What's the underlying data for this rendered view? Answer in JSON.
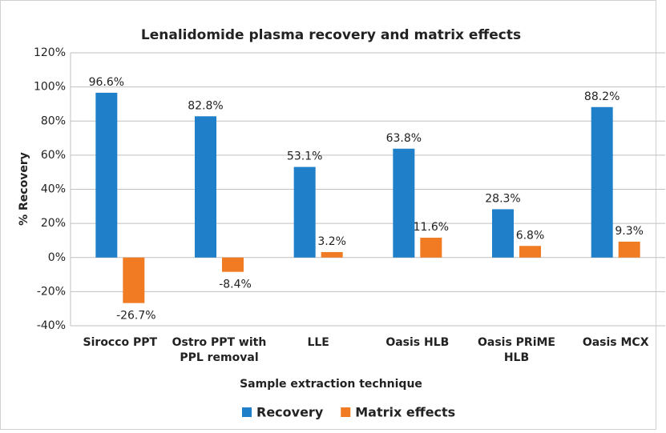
{
  "chart_data": {
    "type": "bar",
    "title": "Lenalidomide plasma recovery and matrix effects",
    "x_label": "Sample extraction technique",
    "y_label": "% Recovery",
    "categories": [
      "Sirocco PPT",
      "Ostro PPT with PPL removal",
      "LLE",
      "Oasis HLB",
      "Oasis PRiME HLB",
      "Oasis MCX"
    ],
    "series": [
      {
        "name": "Recovery",
        "color": "#1f7fc9",
        "values": [
          96.6,
          82.8,
          53.1,
          63.8,
          28.3,
          88.2
        ],
        "value_labels": [
          "96.6%",
          "82.8%",
          "53.1%",
          "63.8%",
          "28.3%",
          "88.2%"
        ]
      },
      {
        "name": "Matrix effects",
        "color": "#f07b22",
        "values": [
          -26.7,
          -8.4,
          3.2,
          11.6,
          6.8,
          9.3
        ],
        "value_labels": [
          "-26.7%",
          "-8.4%",
          "3.2%",
          "11.6%",
          "6.8%",
          "9.3%"
        ]
      }
    ],
    "ylim": [
      -40,
      120
    ],
    "yticks": [
      {
        "value": -40,
        "label": "-40%"
      },
      {
        "value": -20,
        "label": "-20%"
      },
      {
        "value": 0,
        "label": "0%"
      },
      {
        "value": 20,
        "label": "20%"
      },
      {
        "value": 40,
        "label": "40%"
      },
      {
        "value": 60,
        "label": "60%"
      },
      {
        "value": 80,
        "label": "80%"
      },
      {
        "value": 100,
        "label": "100%"
      },
      {
        "value": 120,
        "label": "120%"
      }
    ],
    "grid": true,
    "legend": "bottom"
  }
}
